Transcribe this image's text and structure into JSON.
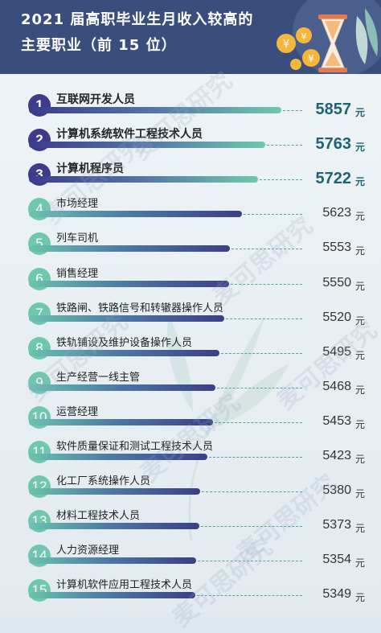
{
  "header": {
    "title_line1": "2021 届高职毕业生月收入较高的",
    "title_line2": "主要职业（前 15 位）"
  },
  "watermark": "麦可思研究",
  "colors": {
    "header_bg": "#3a4e7e",
    "top_badge": "#3d3b8a",
    "normal_badge": "#6fc8ad",
    "top_value": "#1f6270"
  },
  "chart_data": {
    "type": "bar",
    "orientation": "horizontal",
    "unit": "元",
    "top_highlight_count": 3,
    "items": [
      {
        "rank": "1",
        "label": "互联网开发人员",
        "value": 5857
      },
      {
        "rank": "2",
        "label": "计算机系统软件工程技术人员",
        "value": 5763
      },
      {
        "rank": "3",
        "label": "计算机程序员",
        "value": 5722
      },
      {
        "rank": "4",
        "label": "市场经理",
        "value": 5623
      },
      {
        "rank": "5",
        "label": "列车司机",
        "value": 5553
      },
      {
        "rank": "6",
        "label": "销售经理",
        "value": 5550
      },
      {
        "rank": "7",
        "label": "铁路闸、铁路信号和转辙器操作人员",
        "value": 5520
      },
      {
        "rank": "8",
        "label": "铁轨铺设及维护设备操作人员",
        "value": 5495
      },
      {
        "rank": "9",
        "label": "生产经营一线主管",
        "value": 5468
      },
      {
        "rank": "10",
        "label": "运营经理",
        "value": 5453
      },
      {
        "rank": "11",
        "label": "软件质量保证和测试工程技术人员",
        "value": 5423
      },
      {
        "rank": "12",
        "label": "化工厂系统操作人员",
        "value": 5380
      },
      {
        "rank": "13",
        "label": "材料工程技术人员",
        "value": 5373
      },
      {
        "rank": "14",
        "label": "人力资源经理",
        "value": 5354
      },
      {
        "rank": "15",
        "label": "计算机软件应用工程技术人员",
        "value": 5349
      }
    ]
  }
}
